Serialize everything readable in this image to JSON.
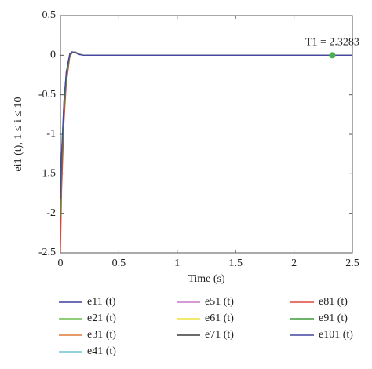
{
  "chart_data": {
    "type": "line",
    "xlabel": "Time (s)",
    "ylabel": "ei1 (t), 1 ≤ i ≤ 10",
    "x": [
      0,
      0.01,
      0.03,
      0.05,
      0.08,
      0.1,
      0.13,
      0.16,
      0.2,
      0.25,
      2.5
    ],
    "series": [
      {
        "name": "e11 (t)",
        "color": "#3f3f9c",
        "values": [
          -1.85,
          -1.25,
          -0.6,
          -0.22,
          0.02,
          0.04,
          0.03,
          0.01,
          0,
          0,
          0
        ]
      },
      {
        "name": "e21 (t)",
        "color": "#6cbf4c",
        "values": [
          -1.9,
          -1.3,
          -0.65,
          -0.25,
          0.01,
          0.04,
          0.035,
          0.01,
          0,
          0,
          0
        ]
      },
      {
        "name": "e31 (t)",
        "color": "#e07a38",
        "values": [
          -2.0,
          -1.4,
          -0.7,
          -0.28,
          0,
          0.04,
          0.035,
          0.012,
          0,
          0,
          0
        ]
      },
      {
        "name": "e41 (t)",
        "color": "#71c4da",
        "values": [
          -1.95,
          -1.35,
          -0.66,
          -0.26,
          0.01,
          0.035,
          0.03,
          0.01,
          0,
          0,
          0
        ]
      },
      {
        "name": "e51 (t)",
        "color": "#c77ac8",
        "values": [
          -2.1,
          -1.45,
          -0.72,
          -0.3,
          0,
          0.04,
          0.04,
          0.012,
          0,
          0,
          0
        ]
      },
      {
        "name": "e61 (t)",
        "color": "#ece23c",
        "values": [
          -1.88,
          -1.28,
          -0.62,
          -0.24,
          0.015,
          0.04,
          0.03,
          0.01,
          0,
          0,
          0
        ]
      },
      {
        "name": "e71 (t)",
        "color": "#3a3a3a",
        "values": [
          -2.2,
          -1.5,
          -0.75,
          -0.32,
          -0.01,
          0.035,
          0.04,
          0.015,
          0,
          0,
          0
        ]
      },
      {
        "name": "e81 (t)",
        "color": "#e0463a",
        "values": [
          -2.5,
          -1.7,
          -0.85,
          -0.36,
          -0.02,
          0.03,
          0.04,
          0.015,
          0,
          0,
          0
        ]
      },
      {
        "name": "e91 (t)",
        "color": "#3b9a3b",
        "values": [
          -2.05,
          -1.42,
          -0.7,
          -0.29,
          0,
          0.04,
          0.038,
          0.012,
          0,
          0,
          0
        ]
      },
      {
        "name": "e101 (t)",
        "color": "#4545a6",
        "values": [
          -1.82,
          -1.22,
          -0.58,
          -0.21,
          0.02,
          0.045,
          0.03,
          0.01,
          0,
          0,
          0
        ]
      }
    ],
    "annotation": {
      "text": "T1 = 2.3283",
      "x": 2.3283,
      "y": 0,
      "color": "#4caf50"
    },
    "xlim": [
      0,
      2.5
    ],
    "xticks": [
      0,
      0.5,
      1,
      1.5,
      2,
      2.5
    ],
    "ylim": [
      -2.5,
      0.5
    ],
    "yticks": [
      -2.5,
      -2,
      -1.5,
      -1,
      -0.5,
      0,
      0.5
    ],
    "grid": false,
    "legend": "bottom"
  }
}
